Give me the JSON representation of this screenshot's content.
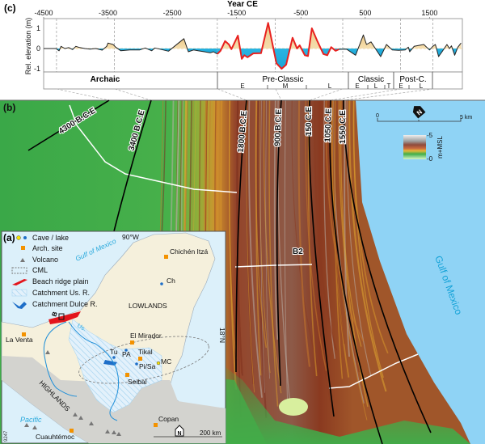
{
  "panel_c": {
    "label": "(c)",
    "periods": [
      {
        "label": "Archaic",
        "subs": []
      },
      {
        "label": "Pre-Classic",
        "subs": [
          "E",
          "M",
          "L"
        ]
      },
      {
        "label": "Classic",
        "subs": [
          "E",
          "L",
          "T"
        ]
      },
      {
        "label": "Post-C.",
        "subs": [
          "E",
          "L"
        ]
      }
    ]
  },
  "chart_data": {
    "type": "area",
    "xlabel": "Year CE",
    "ylabel": "Rel. elevation (m)",
    "xticks": [
      -4500,
      -3500,
      -2500,
      -1500,
      -500,
      500,
      1500
    ],
    "xtick_labels": [
      "-4500",
      "-3500",
      "-2500",
      "-1500",
      "-500",
      "500",
      "1500"
    ],
    "yticks": [
      1,
      0,
      -1
    ],
    "ytick_labels": [
      "1",
      "0",
      "-1"
    ],
    "xlim": [
      -4500,
      2010
    ],
    "ylim": [
      -1.16,
      1.48
    ],
    "grid": false,
    "reference_lines": [
      -4300,
      -3400,
      -1800,
      -900,
      150,
      1050,
      1550
    ],
    "fill_colors": {
      "above_zero": "#f3d9a4",
      "below_zero": "#33bde8"
    },
    "series": [
      {
        "color": "#222222",
        "x": [
          -4500,
          -4460,
          -4310,
          -4260,
          -4230,
          -4170,
          -4110,
          -4050,
          -4000,
          -3940,
          -3860,
          -3780,
          -3690,
          -3590,
          -3520,
          -3500,
          -3420,
          -3380,
          -3300,
          -3160,
          -3010,
          -2920,
          -2820,
          -2770,
          -2560,
          -2320,
          -2250,
          -2170,
          -2100,
          -2000,
          -1910,
          -1860,
          -1800
        ],
        "y": [
          0,
          0,
          0,
          -0.11,
          0.11,
          0,
          0.05,
          -0.05,
          0.11,
          0.05,
          0,
          -0.03,
          0,
          -0.08,
          0.11,
          0.27,
          0.2,
          0.07,
          -0.11,
          -0.07,
          -0.07,
          0.03,
          -0.11,
          0.03,
          -0.13,
          0.49,
          -0.16,
          -0.07,
          -0.11,
          -0.16,
          -0.21,
          -0.16,
          -0.27
        ]
      },
      {
        "color": "#e8201e",
        "x": [
          -1800,
          -1750,
          -1680,
          -1620,
          -1580,
          -1480,
          -1420,
          -1380,
          -1330,
          -1240,
          -1120,
          -1010,
          -880,
          -800,
          -730,
          -630,
          -560,
          -520,
          -440,
          -390,
          -330,
          -250,
          -150,
          -90,
          -30,
          40,
          90
        ],
        "y": [
          -0.27,
          -0.11,
          0.37,
          0.2,
          -0.03,
          0.64,
          -0.51,
          -0.33,
          -0.43,
          -0.24,
          -0.23,
          1.27,
          -0.73,
          -1.0,
          -0.8,
          0.53,
          0,
          0.16,
          -0.33,
          -0.37,
          1.0,
          0.4,
          -0.27,
          -0.33,
          0.07,
          -0.11,
          -0.04
        ]
      },
      {
        "color": "#222222",
        "x": [
          90,
          210,
          350,
          470,
          520,
          590,
          740,
          830,
          920,
          1020,
          1120,
          1170,
          1190,
          1260,
          1410,
          1500,
          1550,
          1590,
          1640,
          1700,
          1770,
          1810,
          1840,
          1890,
          1940,
          1990
        ],
        "y": [
          -0.04,
          -0.03,
          -0.33,
          0.67,
          0.2,
          0.33,
          -0.4,
          0.2,
          -0.07,
          -0.09,
          -0.07,
          0.07,
          -0.16,
          0.11,
          0.2,
          -0.07,
          0.11,
          0.2,
          -0.4,
          -0.13,
          0.2,
          0,
          0.13,
          -0.33,
          0.07,
          0.27
        ]
      }
    ]
  },
  "panel_b": {
    "label": "(b)",
    "isochrones": [
      "4300 B.C.E",
      "3400 B.C.E",
      "1800 B.C.E",
      "900 B.C.E",
      "150 C.E",
      "1050 C.E",
      "1550 C.E"
    ],
    "transect_label": "B2",
    "sea_label": "Gulf of Mexico",
    "scale_zero": "0",
    "scale_end": "5 km",
    "colorbar_max": "-5",
    "colorbar_min": "-0",
    "colorbar_unit": "m+MSL",
    "north_icon": "north-arrow-icon",
    "colors": {
      "lowland": "#3fae4a",
      "ridge_orange": "#d8992a",
      "ridge_brown": "#8a3a20",
      "sea": "#8fd3f5"
    }
  },
  "panel_a": {
    "label": "(a)",
    "legend": [
      "Cave / lake",
      "Arch. site",
      "Volcano",
      "CML",
      "Beach ridge plain",
      "Catchment Us. R.",
      "Catchment Dulce R."
    ],
    "longitude": "90°W",
    "latitude": "18°N",
    "sea_gulf": "Gulf of Mexico",
    "sea_pacific": "Pacific",
    "regions": [
      "LOWLANDS",
      "HIGHLANDS"
    ],
    "box_label": "B",
    "river_label": "Us.",
    "sites": [
      "Chichén Itzá",
      "Ch",
      "La Venta",
      "El Mirador",
      "Tu",
      "PA",
      "Tikal",
      "MC",
      "Pi/Sa",
      "Seibal",
      "Copan",
      "Cuauhtémoc"
    ],
    "scale": "200 km",
    "north": "N",
    "figure_id": "9247",
    "colors": {
      "land": "#f5f0dc",
      "sea": "#dcf0fa",
      "highlands": "#d3d3cf",
      "site": "#f39200",
      "lake": "#1f6fc8",
      "ridge": "#e3141b"
    }
  }
}
